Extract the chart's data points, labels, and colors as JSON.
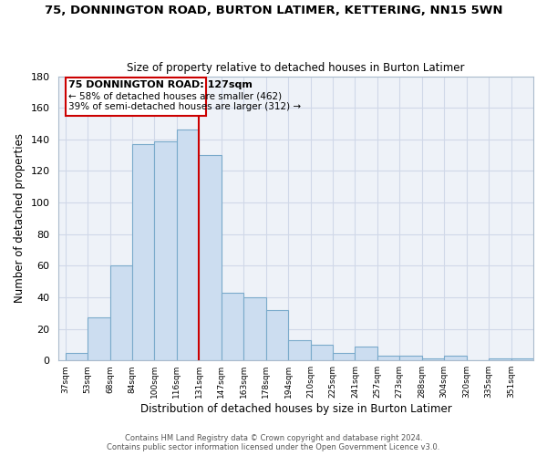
{
  "title": "75, DONNINGTON ROAD, BURTON LATIMER, KETTERING, NN15 5WN",
  "subtitle": "Size of property relative to detached houses in Burton Latimer",
  "xlabel": "Distribution of detached houses by size in Burton Latimer",
  "ylabel": "Number of detached properties",
  "bar_labels": [
    "37sqm",
    "53sqm",
    "68sqm",
    "84sqm",
    "100sqm",
    "116sqm",
    "131sqm",
    "147sqm",
    "163sqm",
    "178sqm",
    "194sqm",
    "210sqm",
    "225sqm",
    "241sqm",
    "257sqm",
    "273sqm",
    "288sqm",
    "304sqm",
    "320sqm",
    "335sqm",
    "351sqm"
  ],
  "bar_values": [
    5,
    27,
    60,
    137,
    139,
    146,
    130,
    43,
    40,
    32,
    13,
    10,
    5,
    9,
    3,
    3,
    1,
    3,
    0,
    1,
    1
  ],
  "bar_color": "#ccddf0",
  "bar_edge_color": "#7aaacb",
  "grid_color": "#d0d8e8",
  "bg_color": "#eef2f8",
  "annotation_box_edge": "#cc0000",
  "vline_color": "#cc0000",
  "vline_x_label": "131sqm",
  "annotation_title": "75 DONNINGTON ROAD: 127sqm",
  "annotation_line1": "← 58% of detached houses are smaller (462)",
  "annotation_line2": "39% of semi-detached houses are larger (312) →",
  "ylim": [
    0,
    180
  ],
  "yticks": [
    0,
    20,
    40,
    60,
    80,
    100,
    120,
    140,
    160,
    180
  ],
  "footnote1": "Contains HM Land Registry data © Crown copyright and database right 2024.",
  "footnote2": "Contains public sector information licensed under the Open Government Licence v3.0."
}
